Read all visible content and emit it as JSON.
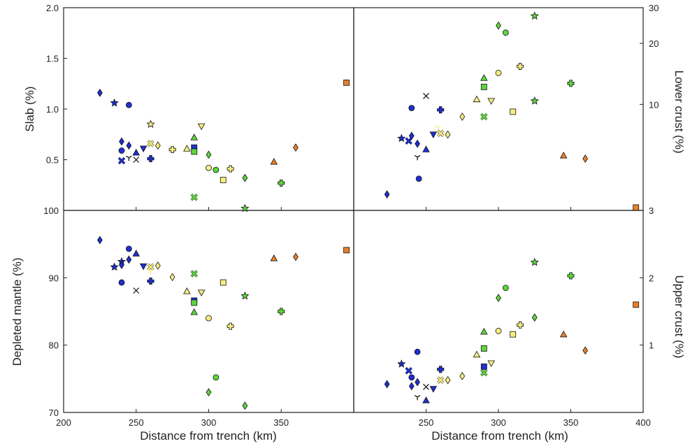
{
  "figure": {
    "x_axis_label": "Distance from trench (km)",
    "panels": [
      {
        "id": "slab",
        "ylabel": "Slab (%)",
        "side": "left"
      },
      {
        "id": "lower-crust",
        "ylabel": "Lower crust (%)",
        "side": "right"
      },
      {
        "id": "depleted-mantle",
        "ylabel": "Depleted mantle (%)",
        "side": "left"
      },
      {
        "id": "upper-crust",
        "ylabel": "Upper crust (%)",
        "side": "right"
      }
    ]
  },
  "chart_data": [
    {
      "type": "scatter",
      "panel": "slab",
      "ylabel": "Slab (%)",
      "xlim": [
        200,
        400
      ],
      "ylim": [
        0,
        2.0
      ],
      "y_ticks": [
        "0.5",
        "1.0",
        "1.5",
        "2.0"
      ],
      "x_ticks": [],
      "points": [
        {
          "x": 225,
          "y": 1.16,
          "marker": "diamond",
          "color": "#1f2fd0"
        },
        {
          "x": 235,
          "y": 1.06,
          "marker": "star",
          "color": "#1f2fd0"
        },
        {
          "x": 245,
          "y": 1.04,
          "marker": "circle",
          "color": "#1f2fd0"
        },
        {
          "x": 240,
          "y": 0.68,
          "marker": "diamond",
          "color": "#1f2fd0"
        },
        {
          "x": 245,
          "y": 0.64,
          "marker": "diamond",
          "color": "#1f2fd0"
        },
        {
          "x": 240,
          "y": 0.59,
          "marker": "circle",
          "color": "#1f2fd0"
        },
        {
          "x": 250,
          "y": 0.57,
          "marker": "triangle",
          "color": "#1f2fd0"
        },
        {
          "x": 255,
          "y": 0.61,
          "marker": "triangle-down",
          "color": "#1f2fd0"
        },
        {
          "x": 240,
          "y": 0.49,
          "marker": "x",
          "color": "#1f2fd0"
        },
        {
          "x": 245,
          "y": 0.52,
          "marker": "tri",
          "color": "#111111"
        },
        {
          "x": 250,
          "y": 0.5,
          "marker": "x",
          "color": "#111111"
        },
        {
          "x": 260,
          "y": 0.51,
          "marker": "plus",
          "color": "#1f2fd0"
        },
        {
          "x": 260,
          "y": 0.66,
          "marker": "x",
          "color": "#f5ee80"
        },
        {
          "x": 260,
          "y": 0.85,
          "marker": "star",
          "color": "#f5ee80"
        },
        {
          "x": 265,
          "y": 0.64,
          "marker": "diamond",
          "color": "#f5ee80"
        },
        {
          "x": 275,
          "y": 0.6,
          "marker": "plus",
          "color": "#f5ee80"
        },
        {
          "x": 285,
          "y": 0.61,
          "marker": "triangle",
          "color": "#f5ee80"
        },
        {
          "x": 290,
          "y": 0.72,
          "marker": "triangle",
          "color": "#5cd63c"
        },
        {
          "x": 290,
          "y": 0.62,
          "marker": "square",
          "color": "#1f2fd0"
        },
        {
          "x": 290,
          "y": 0.58,
          "marker": "square",
          "color": "#5cd63c"
        },
        {
          "x": 295,
          "y": 0.83,
          "marker": "triangle-down",
          "color": "#f5ee80"
        },
        {
          "x": 300,
          "y": 0.55,
          "marker": "diamond",
          "color": "#5cd63c"
        },
        {
          "x": 300,
          "y": 0.42,
          "marker": "circle",
          "color": "#f5ee80"
        },
        {
          "x": 305,
          "y": 0.4,
          "marker": "circle",
          "color": "#5cd63c"
        },
        {
          "x": 310,
          "y": 0.3,
          "marker": "square",
          "color": "#f5ee80"
        },
        {
          "x": 315,
          "y": 0.41,
          "marker": "plus",
          "color": "#f5ee80"
        },
        {
          "x": 290,
          "y": 0.13,
          "marker": "x",
          "color": "#5cd63c"
        },
        {
          "x": 325,
          "y": 0.32,
          "marker": "diamond",
          "color": "#5cd63c"
        },
        {
          "x": 325,
          "y": 0.02,
          "marker": "star",
          "color": "#5cd63c"
        },
        {
          "x": 345,
          "y": 0.48,
          "marker": "triangle",
          "color": "#e8802a"
        },
        {
          "x": 350,
          "y": 0.27,
          "marker": "plus",
          "color": "#5cd63c"
        },
        {
          "x": 360,
          "y": 0.62,
          "marker": "diamond",
          "color": "#e8802a"
        },
        {
          "x": 395,
          "y": 1.26,
          "marker": "square",
          "color": "#e8802a"
        }
      ]
    },
    {
      "type": "scatter",
      "panel": "lower-crust",
      "ylabel": "Lower crust (%)",
      "xlim": [
        200,
        400
      ],
      "y_scale": "log",
      "ylim": [
        3,
        30
      ],
      "y_ticks": [
        "10",
        "20",
        "30"
      ],
      "x_ticks": [],
      "points": [
        {
          "x": 223,
          "y": 3.6,
          "marker": "diamond",
          "color": "#1f2fd0"
        },
        {
          "x": 233,
          "y": 6.8,
          "marker": "star",
          "color": "#1f2fd0"
        },
        {
          "x": 238,
          "y": 6.6,
          "marker": "x",
          "color": "#1f2fd0"
        },
        {
          "x": 240,
          "y": 9.6,
          "marker": "circle",
          "color": "#1f2fd0"
        },
        {
          "x": 240,
          "y": 7.0,
          "marker": "diamond",
          "color": "#1f2fd0"
        },
        {
          "x": 244,
          "y": 5.5,
          "marker": "tri",
          "color": "#111111"
        },
        {
          "x": 244,
          "y": 6.4,
          "marker": "diamond",
          "color": "#1f2fd0"
        },
        {
          "x": 245,
          "y": 4.3,
          "marker": "circle",
          "color": "#1f2fd0"
        },
        {
          "x": 250,
          "y": 11.0,
          "marker": "x",
          "color": "#111111"
        },
        {
          "x": 250,
          "y": 6.0,
          "marker": "triangle",
          "color": "#1f2fd0"
        },
        {
          "x": 255,
          "y": 7.1,
          "marker": "triangle-down",
          "color": "#1f2fd0"
        },
        {
          "x": 258,
          "y": 7.7,
          "marker": "tri",
          "color": "#f5ee80"
        },
        {
          "x": 260,
          "y": 9.4,
          "marker": "plus",
          "color": "#1f2fd0"
        },
        {
          "x": 260,
          "y": 7.2,
          "marker": "x",
          "color": "#f5ee80"
        },
        {
          "x": 265,
          "y": 7.1,
          "marker": "diamond",
          "color": "#f5ee80"
        },
        {
          "x": 275,
          "y": 8.7,
          "marker": "diamond",
          "color": "#f5ee80"
        },
        {
          "x": 285,
          "y": 10.6,
          "marker": "triangle",
          "color": "#f5ee80"
        },
        {
          "x": 290,
          "y": 13.5,
          "marker": "triangle",
          "color": "#5cd63c"
        },
        {
          "x": 290,
          "y": 12.2,
          "marker": "square",
          "color": "#5cd63c"
        },
        {
          "x": 290,
          "y": 8.7,
          "marker": "x",
          "color": "#5cd63c"
        },
        {
          "x": 295,
          "y": 10.4,
          "marker": "triangle-down",
          "color": "#f5ee80"
        },
        {
          "x": 300,
          "y": 24.5,
          "marker": "diamond",
          "color": "#5cd63c"
        },
        {
          "x": 300,
          "y": 14.3,
          "marker": "circle",
          "color": "#f5ee80"
        },
        {
          "x": 305,
          "y": 22.6,
          "marker": "circle",
          "color": "#5cd63c"
        },
        {
          "x": 310,
          "y": 9.2,
          "marker": "square",
          "color": "#f5ee80"
        },
        {
          "x": 315,
          "y": 15.4,
          "marker": "plus",
          "color": "#f5ee80"
        },
        {
          "x": 325,
          "y": 27.3,
          "marker": "star",
          "color": "#5cd63c"
        },
        {
          "x": 325,
          "y": 10.4,
          "marker": "star",
          "color": "#5cd63c"
        },
        {
          "x": 345,
          "y": 5.6,
          "marker": "triangle",
          "color": "#e8802a"
        },
        {
          "x": 350,
          "y": 12.7,
          "marker": "plus",
          "color": "#5cd63c"
        },
        {
          "x": 360,
          "y": 5.4,
          "marker": "diamond",
          "color": "#e8802a"
        },
        {
          "x": 395,
          "y": 3.1,
          "marker": "square",
          "color": "#e8802a"
        }
      ]
    },
    {
      "type": "scatter",
      "panel": "depleted-mantle",
      "ylabel": "Depleted mantle (%)",
      "xlabel": "Distance from trench (km)",
      "xlim": [
        200,
        400
      ],
      "ylim": [
        70,
        100
      ],
      "y_ticks": [
        "70",
        "80",
        "90",
        "100"
      ],
      "x_ticks": [
        "200",
        "250",
        "300",
        "350"
      ],
      "points": [
        {
          "x": 225,
          "y": 95.6,
          "marker": "diamond",
          "color": "#1f2fd0"
        },
        {
          "x": 235,
          "y": 91.6,
          "marker": "star",
          "color": "#1f2fd0"
        },
        {
          "x": 240,
          "y": 92.4,
          "marker": "star",
          "color": "#1f2fd0"
        },
        {
          "x": 240,
          "y": 91.9,
          "marker": "diamond",
          "color": "#1f2fd0"
        },
        {
          "x": 240,
          "y": 89.3,
          "marker": "circle",
          "color": "#1f2fd0"
        },
        {
          "x": 245,
          "y": 94.3,
          "marker": "circle",
          "color": "#1f2fd0"
        },
        {
          "x": 245,
          "y": 92.7,
          "marker": "diamond",
          "color": "#1f2fd0"
        },
        {
          "x": 250,
          "y": 93.6,
          "marker": "triangle",
          "color": "#1f2fd0"
        },
        {
          "x": 250,
          "y": 88.1,
          "marker": "x",
          "color": "#111111"
        },
        {
          "x": 255,
          "y": 91.7,
          "marker": "triangle-down",
          "color": "#1f2fd0"
        },
        {
          "x": 260,
          "y": 91.6,
          "marker": "x",
          "color": "#f5ee80"
        },
        {
          "x": 260,
          "y": 91.0,
          "marker": "tri",
          "color": "#f5ee80"
        },
        {
          "x": 260,
          "y": 89.5,
          "marker": "plus",
          "color": "#1f2fd0"
        },
        {
          "x": 265,
          "y": 91.8,
          "marker": "diamond",
          "color": "#f5ee80"
        },
        {
          "x": 275,
          "y": 90.1,
          "marker": "diamond",
          "color": "#f5ee80"
        },
        {
          "x": 285,
          "y": 88.0,
          "marker": "triangle",
          "color": "#f5ee80"
        },
        {
          "x": 290,
          "y": 90.6,
          "marker": "x",
          "color": "#5cd63c"
        },
        {
          "x": 290,
          "y": 86.6,
          "marker": "square",
          "color": "#1f2fd0"
        },
        {
          "x": 290,
          "y": 86.3,
          "marker": "square",
          "color": "#5cd63c"
        },
        {
          "x": 290,
          "y": 84.9,
          "marker": "triangle",
          "color": "#5cd63c"
        },
        {
          "x": 295,
          "y": 87.8,
          "marker": "triangle-down",
          "color": "#f5ee80"
        },
        {
          "x": 300,
          "y": 84.0,
          "marker": "circle",
          "color": "#f5ee80"
        },
        {
          "x": 300,
          "y": 73.0,
          "marker": "diamond",
          "color": "#5cd63c"
        },
        {
          "x": 305,
          "y": 75.2,
          "marker": "circle",
          "color": "#5cd63c"
        },
        {
          "x": 310,
          "y": 89.3,
          "marker": "square",
          "color": "#f5ee80"
        },
        {
          "x": 315,
          "y": 82.8,
          "marker": "plus",
          "color": "#f5ee80"
        },
        {
          "x": 325,
          "y": 87.3,
          "marker": "star",
          "color": "#5cd63c"
        },
        {
          "x": 325,
          "y": 71.0,
          "marker": "diamond",
          "color": "#5cd63c"
        },
        {
          "x": 345,
          "y": 92.9,
          "marker": "triangle",
          "color": "#e8802a"
        },
        {
          "x": 350,
          "y": 85.0,
          "marker": "plus",
          "color": "#5cd63c"
        },
        {
          "x": 360,
          "y": 93.1,
          "marker": "diamond",
          "color": "#e8802a"
        },
        {
          "x": 395,
          "y": 94.1,
          "marker": "square",
          "color": "#e8802a"
        }
      ]
    },
    {
      "type": "scatter",
      "panel": "upper-crust",
      "ylabel": "Upper crust (%)",
      "xlabel": "Distance from trench (km)",
      "xlim": [
        200,
        400
      ],
      "ylim": [
        0,
        3
      ],
      "y_ticks": [
        "1",
        "2",
        "3"
      ],
      "x_ticks": [
        "250",
        "300",
        "350",
        "400"
      ],
      "points": [
        {
          "x": 223,
          "y": 0.42,
          "marker": "diamond",
          "color": "#1f2fd0"
        },
        {
          "x": 233,
          "y": 0.72,
          "marker": "star",
          "color": "#1f2fd0"
        },
        {
          "x": 238,
          "y": 0.62,
          "marker": "x",
          "color": "#1f2fd0"
        },
        {
          "x": 240,
          "y": 0.52,
          "marker": "circle",
          "color": "#1f2fd0"
        },
        {
          "x": 240,
          "y": 0.39,
          "marker": "diamond",
          "color": "#1f2fd0"
        },
        {
          "x": 244,
          "y": 0.9,
          "marker": "circle",
          "color": "#1f2fd0"
        },
        {
          "x": 244,
          "y": 0.45,
          "marker": "diamond",
          "color": "#1f2fd0"
        },
        {
          "x": 244,
          "y": 0.23,
          "marker": "tri",
          "color": "#111111"
        },
        {
          "x": 250,
          "y": 0.38,
          "marker": "x",
          "color": "#111111"
        },
        {
          "x": 250,
          "y": 0.18,
          "marker": "triangle",
          "color": "#1f2fd0"
        },
        {
          "x": 255,
          "y": 0.35,
          "marker": "triangle-down",
          "color": "#1f2fd0"
        },
        {
          "x": 260,
          "y": 0.64,
          "marker": "plus",
          "color": "#1f2fd0"
        },
        {
          "x": 260,
          "y": 0.48,
          "marker": "x",
          "color": "#f5ee80"
        },
        {
          "x": 265,
          "y": 0.48,
          "marker": "diamond",
          "color": "#f5ee80"
        },
        {
          "x": 275,
          "y": 0.54,
          "marker": "diamond",
          "color": "#f5ee80"
        },
        {
          "x": 285,
          "y": 0.86,
          "marker": "triangle",
          "color": "#f5ee80"
        },
        {
          "x": 290,
          "y": 1.2,
          "marker": "triangle",
          "color": "#5cd63c"
        },
        {
          "x": 290,
          "y": 0.95,
          "marker": "square",
          "color": "#5cd63c"
        },
        {
          "x": 290,
          "y": 0.68,
          "marker": "square",
          "color": "#1f2fd0"
        },
        {
          "x": 290,
          "y": 0.59,
          "marker": "x",
          "color": "#5cd63c"
        },
        {
          "x": 295,
          "y": 0.73,
          "marker": "triangle-down",
          "color": "#f5ee80"
        },
        {
          "x": 300,
          "y": 1.21,
          "marker": "circle",
          "color": "#f5ee80"
        },
        {
          "x": 300,
          "y": 1.7,
          "marker": "diamond",
          "color": "#5cd63c"
        },
        {
          "x": 305,
          "y": 1.85,
          "marker": "circle",
          "color": "#5cd63c"
        },
        {
          "x": 310,
          "y": 1.16,
          "marker": "square",
          "color": "#f5ee80"
        },
        {
          "x": 315,
          "y": 1.3,
          "marker": "plus",
          "color": "#f5ee80"
        },
        {
          "x": 325,
          "y": 2.23,
          "marker": "star",
          "color": "#5cd63c"
        },
        {
          "x": 325,
          "y": 1.41,
          "marker": "diamond",
          "color": "#5cd63c"
        },
        {
          "x": 345,
          "y": 1.16,
          "marker": "triangle",
          "color": "#e8802a"
        },
        {
          "x": 350,
          "y": 2.03,
          "marker": "plus",
          "color": "#5cd63c"
        },
        {
          "x": 360,
          "y": 0.92,
          "marker": "diamond",
          "color": "#e8802a"
        },
        {
          "x": 395,
          "y": 1.6,
          "marker": "square",
          "color": "#e8802a"
        }
      ]
    }
  ]
}
